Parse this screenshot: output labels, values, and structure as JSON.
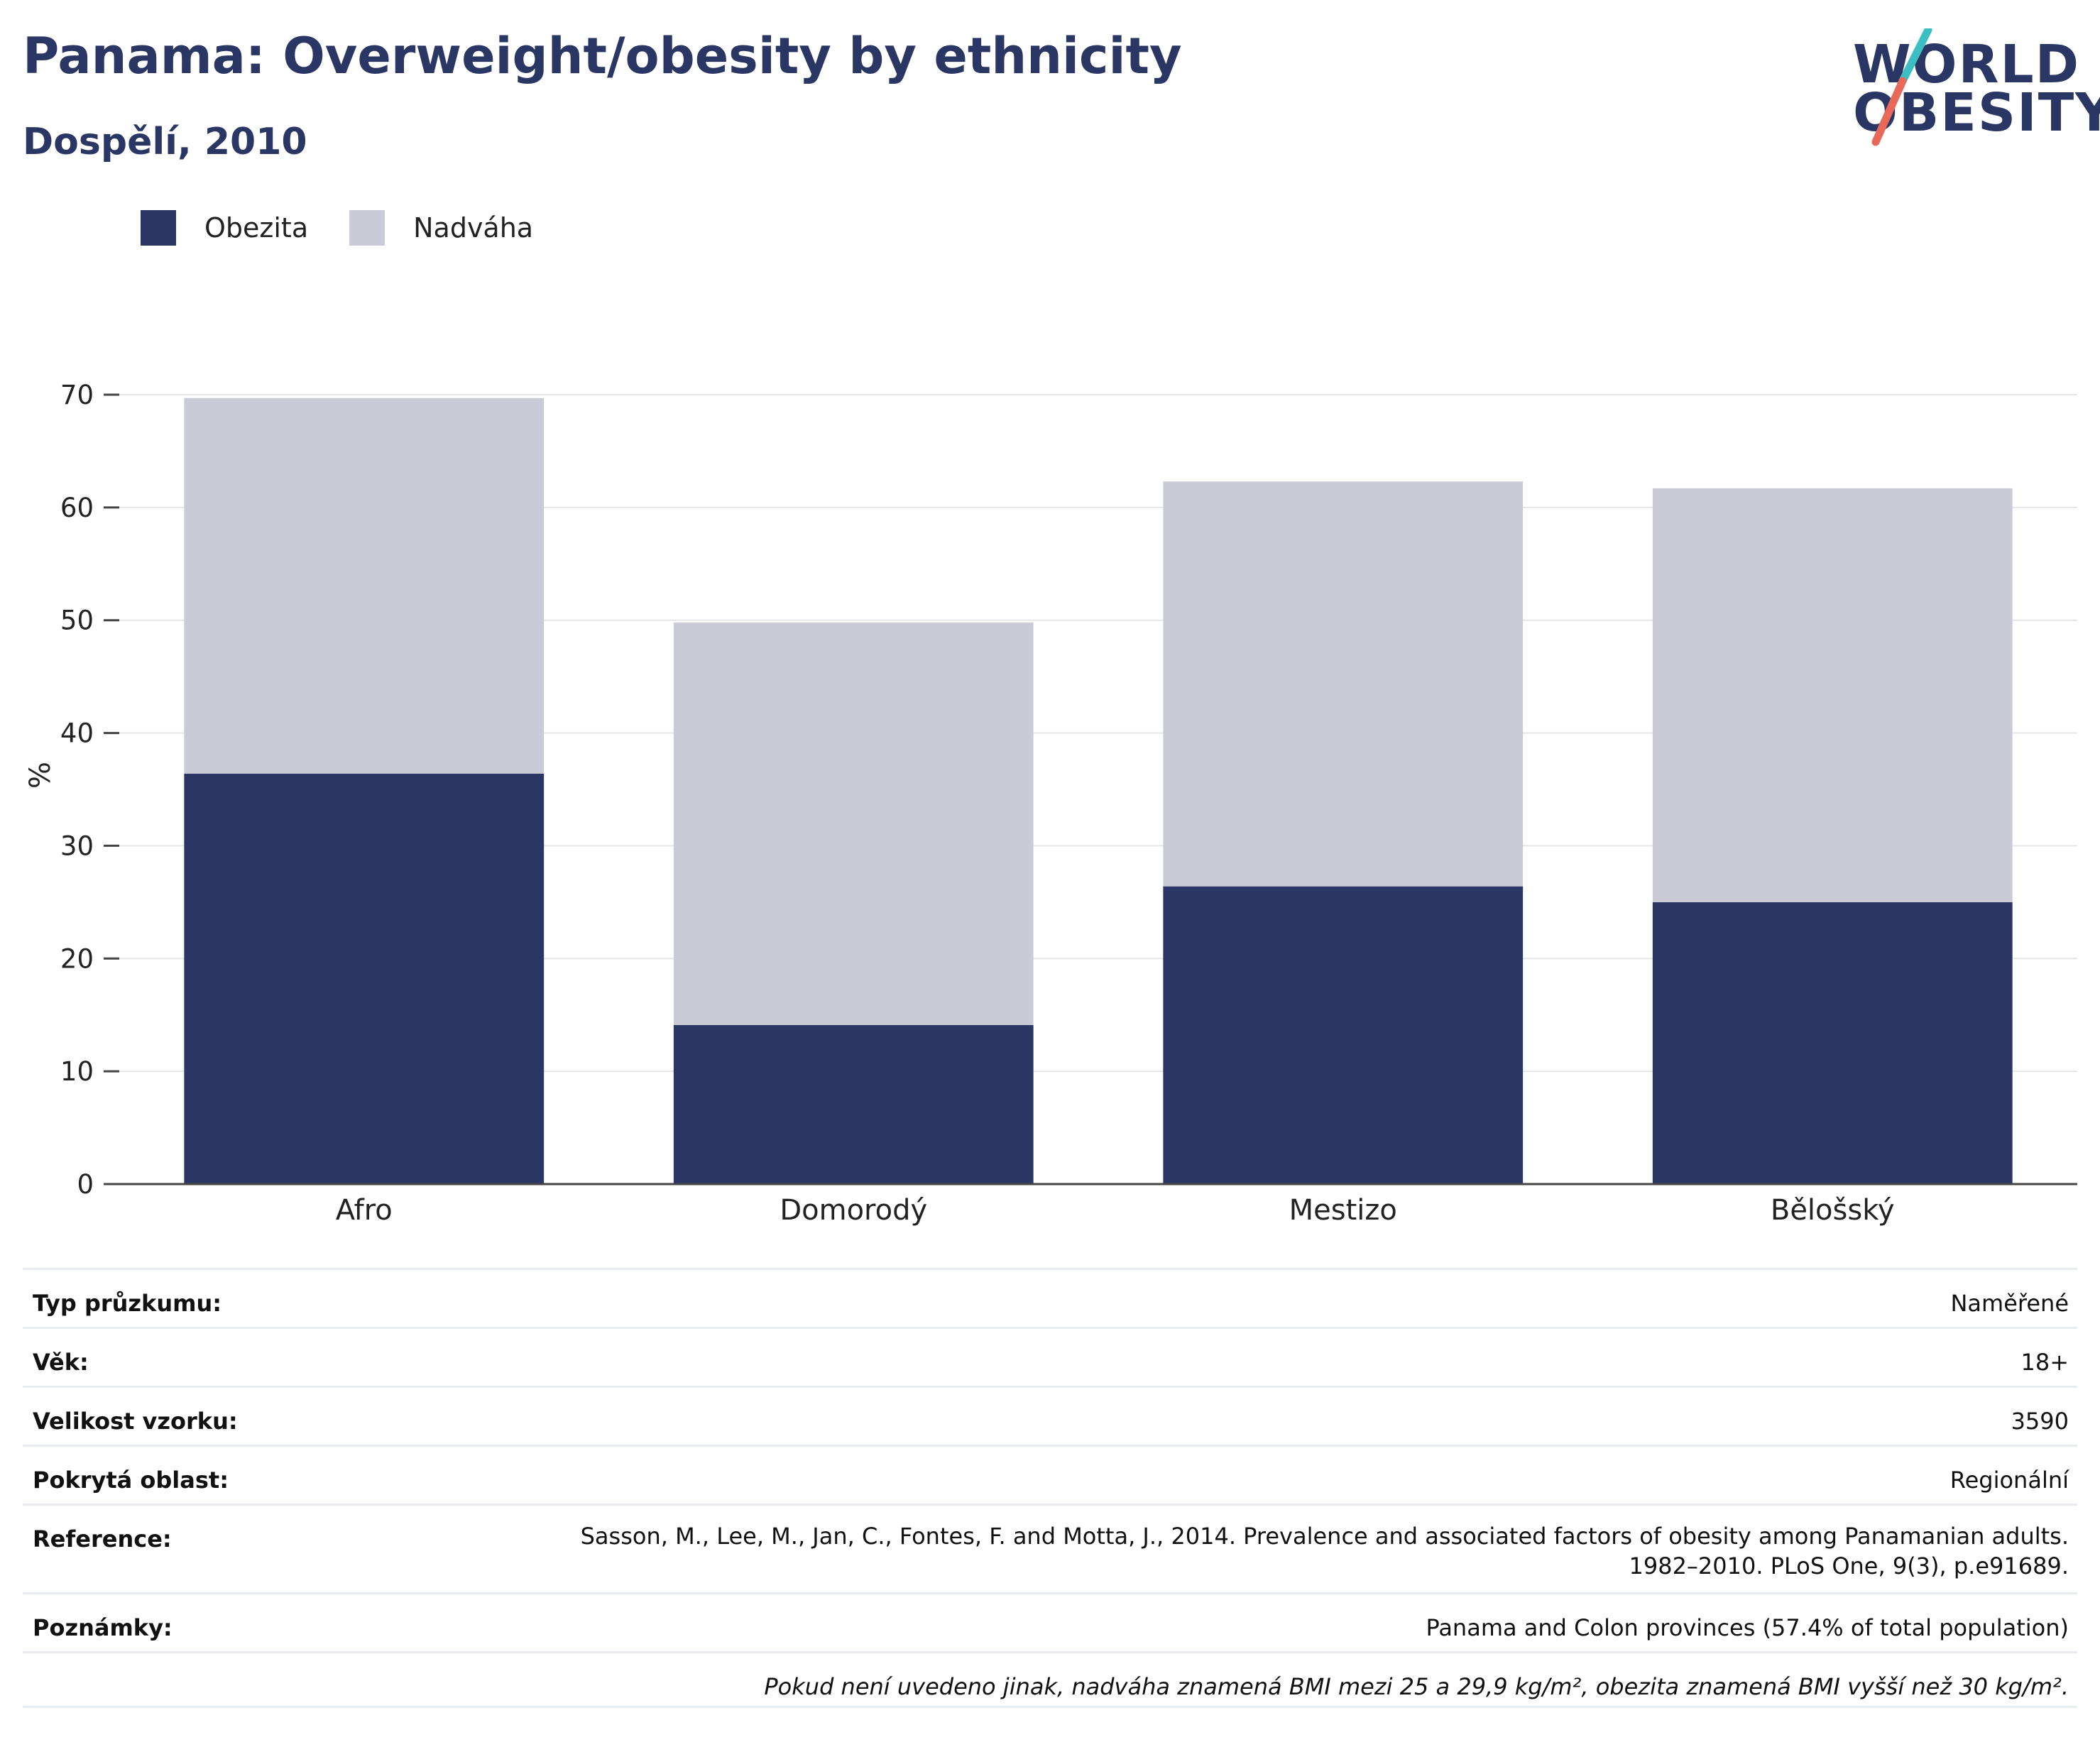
{
  "header": {
    "title": "Panama: Overweight/obesity by ethnicity",
    "subtitle": "Dospělí, 2010"
  },
  "logo": {
    "line1": "WORLD",
    "line2": "OBESITY"
  },
  "colors": {
    "obesity": "#2a3663",
    "overweight": "#cacbd7",
    "accent_teal": "#3bbfc3",
    "accent_coral": "#e8685a"
  },
  "chart_data": {
    "type": "bar",
    "stacked": true,
    "categories": [
      "Afro",
      "Domorodý",
      "Mestizo",
      "Bělošský"
    ],
    "series": [
      {
        "name": "Obezita",
        "values": [
          36.4,
          14.1,
          26.4,
          25.0
        ],
        "color": "#2a3663"
      },
      {
        "name": "Nadváha",
        "values": [
          33.3,
          35.7,
          35.9,
          36.7
        ],
        "color": "#cacbd7"
      }
    ],
    "yticks": [
      0,
      10,
      20,
      30,
      40,
      50,
      60,
      70
    ],
    "ylim": [
      0,
      70
    ],
    "xlabel": "",
    "ylabel": "%",
    "grid": true,
    "legend": "top-left"
  },
  "info": {
    "survey_type": {
      "label": "Typ průzkumu:",
      "value": "Naměřené"
    },
    "age": {
      "label": "Věk:",
      "value": "18+"
    },
    "sample_size": {
      "label": "Velikost vzorku:",
      "value": "3590"
    },
    "coverage": {
      "label": "Pokrytá oblast:",
      "value": "Regionální"
    },
    "reference": {
      "label": "Reference:",
      "value_line1": "Sasson, M., Lee, M., Jan, C., Fontes, F. and Motta, J., 2014. Prevalence and associated factors of obesity among Panamanian adults.",
      "value_line2": "1982–2010. PLoS One, 9(3), p.e91689."
    },
    "notes": {
      "label": "Poznámky:",
      "value": "Panama and Colon provinces (57.4% of total population)"
    },
    "footnote": "Pokud není uvedeno jinak, nadváha znamená BMI mezi 25 a 29,9 kg/m², obezita znamená BMI vyšší než 30 kg/m²."
  }
}
